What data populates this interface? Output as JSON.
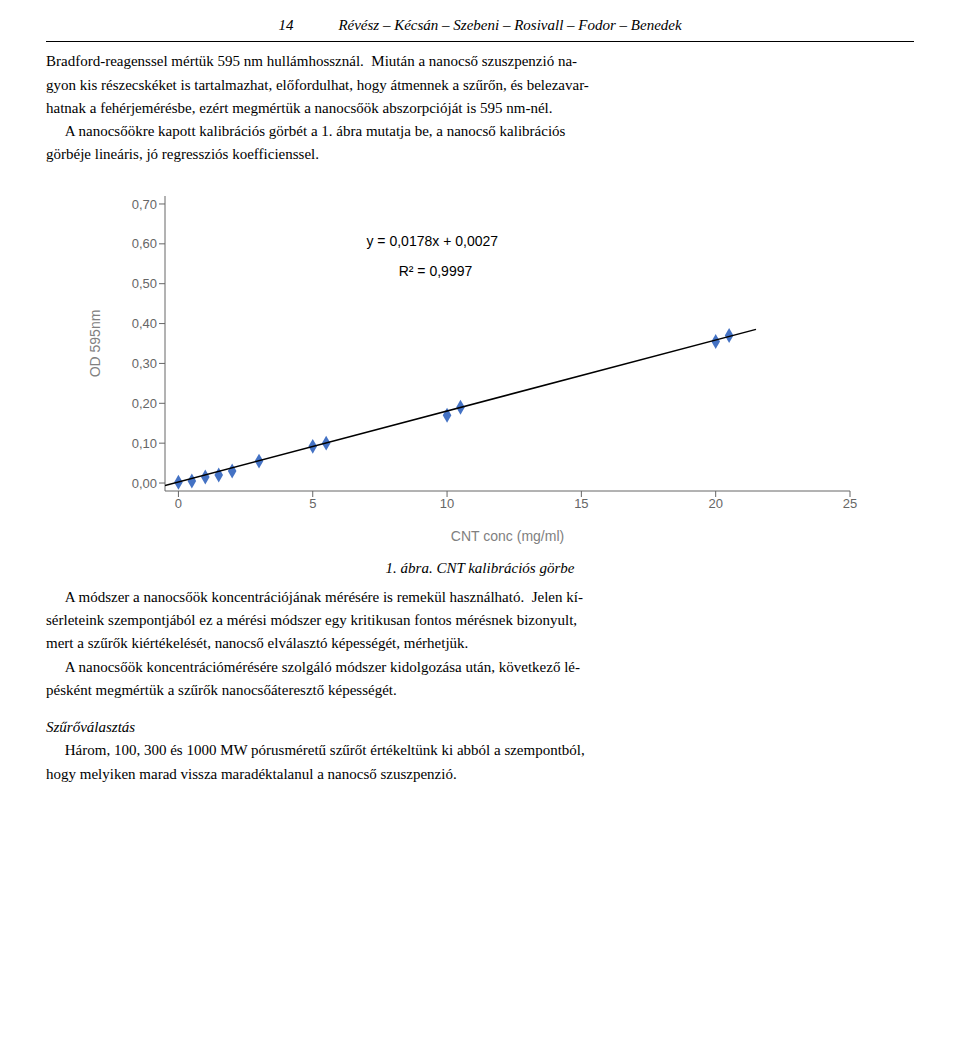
{
  "page": {
    "header": "14            Révész – Kécsán – Szebeni – Rosivall – Fodor – Benedek",
    "body1": "Bradford-reagenssel mértük 595 nm hullámhossznál.  Miután a nanocső szuszpenzió na-\ngyon kis részecskéket is tartalmazhat, előfordulhat, hogy átmennek a szűrőn, és belezavar-\nhatnak a fehérjemérésbe, ezért megmértük a nanocsőök abszorpcióját is 595 nm-nél.\n     A nanocsőökre kapott kalibrációs görbét a 1. ábra mutatja be, a nanocső kalibrációs\ngörbéje lineáris, jó regressziós koefficienssel.",
    "caption": "1. ábra. CNT kalibrációs görbe",
    "body2": "     A módszer a nanocsőök koncentrációjának mérésére is remekül használható.  Jelen kí-\nsérleteink szempontjából ez a mérési módszer egy kritikusan fontos mérésnek bizonyult,\nmert a szűrők kiértékelését, nanocső elválasztó képességét, mérhetjük.\n     A nanocsőök koncentrációmérésére szolgáló módszer kidolgozása után, következő lé-\npésként megmértük a szűrők nanocsőáteresztő képességét.",
    "section_heading": "Szűrőválasztás",
    "body3": "     Három, 100, 300 és 1000 MW pórusméretű szűrőt értékeltünk ki abból a szempontból,\nhogy melyiken marad vissza maradéktalanul a nanocső szuszpenzió."
  },
  "chart_data": {
    "type": "scatter",
    "xlabel": "CNT conc (mg/ml)",
    "ylabel": "OD 595nm",
    "series": [
      {
        "type": "scatter",
        "color": "#4472C4",
        "marker": "diamond",
        "x": [
          0,
          0.5,
          1,
          1.5,
          2,
          3,
          5,
          5.5,
          10,
          10.5,
          20,
          20.5
        ],
        "values": [
          0.002,
          0.005,
          0.015,
          0.02,
          0.03,
          0.055,
          0.092,
          0.1,
          0.17,
          0.19,
          0.355,
          0.37
        ]
      },
      {
        "type": "line",
        "color": "#000000",
        "line_style": "solid",
        "x": [
          -0.5,
          21.5
        ],
        "values": [
          -0.0062,
          0.3854
        ]
      }
    ],
    "annotations": [
      {
        "text": "y = 0,0178x + 0,0027",
        "x": 7.0,
        "y": 0.62
      },
      {
        "text": "R² = 0,9997",
        "x": 8.2,
        "y": 0.545
      }
    ],
    "xlim": [
      -0.5,
      25
    ],
    "ylim": [
      -0.02,
      0.72
    ],
    "xticks": [
      0,
      5,
      10,
      15,
      20,
      25
    ],
    "yticks": [
      {
        "value": 0.0,
        "label": "0,00"
      },
      {
        "value": 0.1,
        "label": "0,10"
      },
      {
        "value": 0.2,
        "label": "0,20"
      },
      {
        "value": 0.3,
        "label": "0,30"
      },
      {
        "value": 0.4,
        "label": "0,40"
      },
      {
        "value": 0.5,
        "label": "0,50"
      },
      {
        "value": 0.6,
        "label": "0,60"
      },
      {
        "value": 0.7,
        "label": "0,70"
      }
    ],
    "grid": false
  }
}
